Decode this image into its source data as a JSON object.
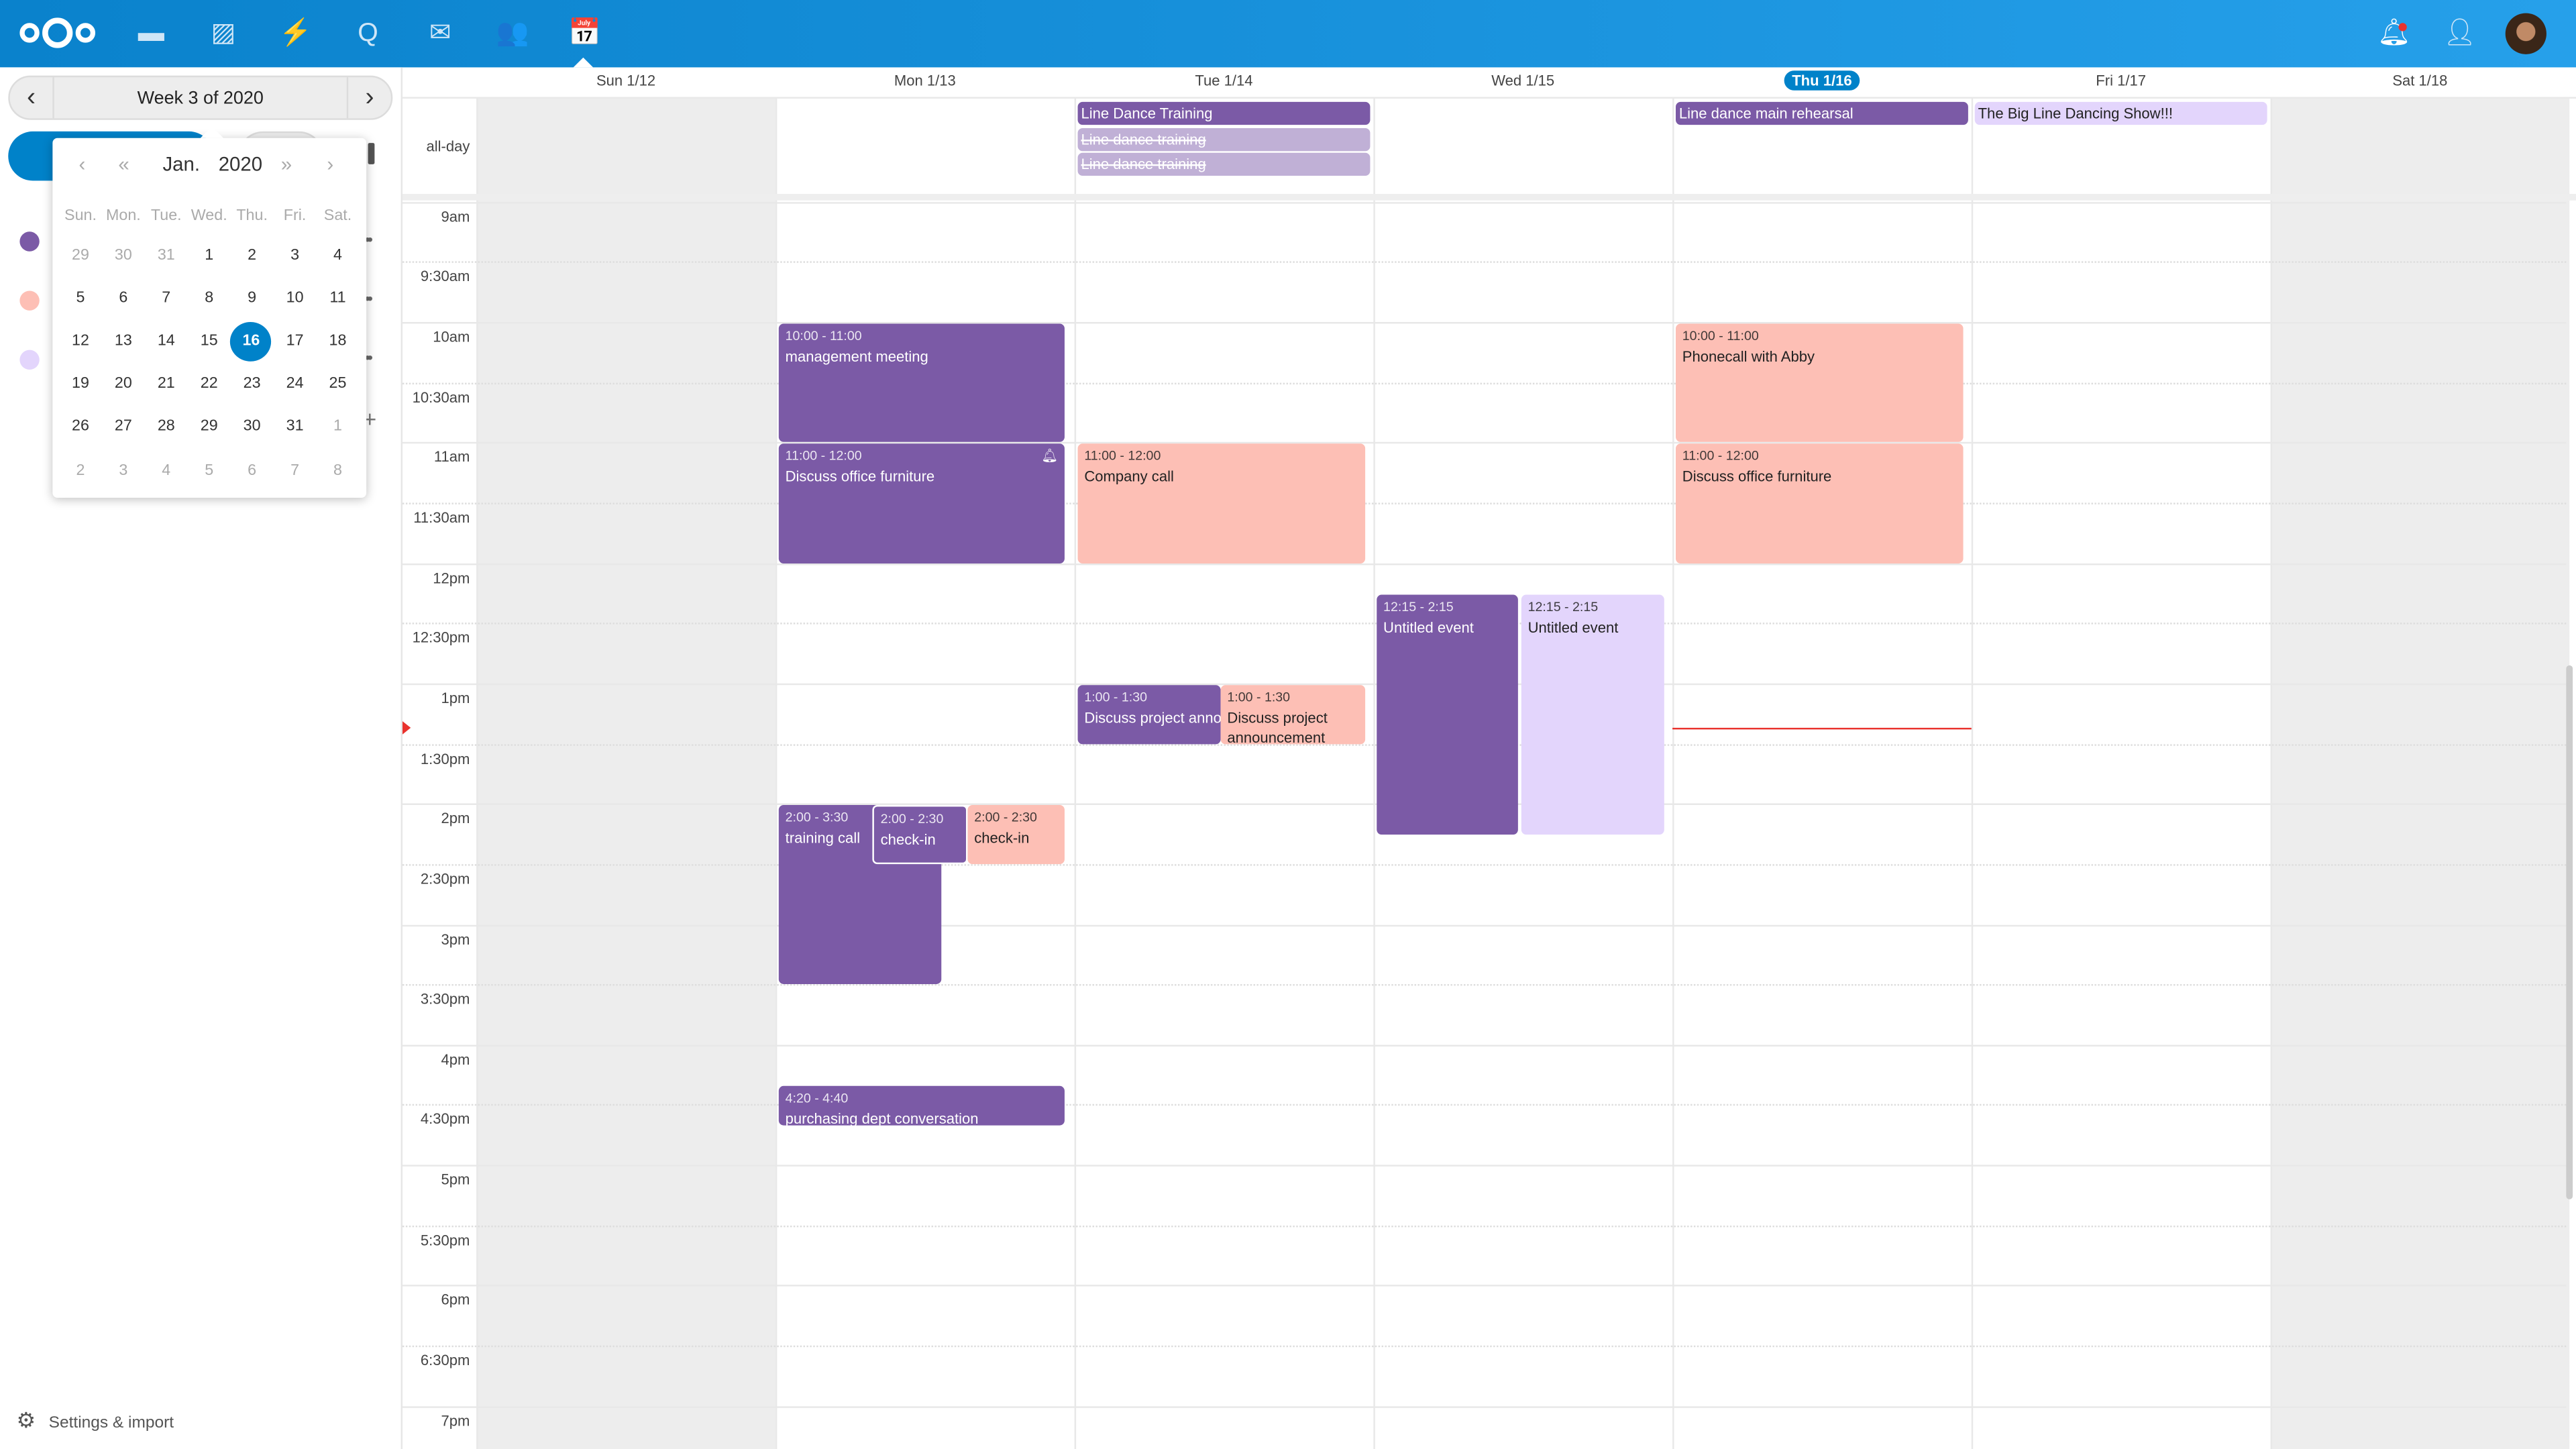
{
  "header": {
    "apps": [
      {
        "name": "files-icon",
        "glyph": "▬"
      },
      {
        "name": "photos-icon",
        "glyph": "▨"
      },
      {
        "name": "activity-icon",
        "glyph": "⚡"
      },
      {
        "name": "search-icon",
        "glyph": "Q"
      },
      {
        "name": "mail-icon",
        "glyph": "✉"
      },
      {
        "name": "contacts-icon",
        "glyph": "👥"
      },
      {
        "name": "calendar-icon",
        "glyph": "📅"
      }
    ],
    "brand_color": "#0082c9"
  },
  "sidebar": {
    "week_label": "Week 3 of 2020",
    "datepicker": {
      "month": "Jan.",
      "year": "2020",
      "weekdays": [
        "Sun.",
        "Mon.",
        "Tue.",
        "Wed.",
        "Thu.",
        "Fri.",
        "Sat."
      ],
      "weeks": [
        [
          "29",
          "30",
          "31",
          "1",
          "2",
          "3",
          "4"
        ],
        [
          "5",
          "6",
          "7",
          "8",
          "9",
          "10",
          "11"
        ],
        [
          "12",
          "13",
          "14",
          "15",
          "16",
          "17",
          "18"
        ],
        [
          "19",
          "20",
          "21",
          "22",
          "23",
          "24",
          "25"
        ],
        [
          "26",
          "27",
          "28",
          "29",
          "30",
          "31",
          "1"
        ],
        [
          "2",
          "3",
          "4",
          "5",
          "6",
          "7",
          "8"
        ]
      ],
      "selected": "16"
    },
    "calendar_colors": [
      "#7b5aa6",
      "#fdbfb5",
      "#e3d5fc"
    ],
    "settings_label": "Settings & import"
  },
  "grid": {
    "all_day_label": "all-day",
    "days": [
      "Sun 1/12",
      "Mon 1/13",
      "Tue 1/14",
      "Wed 1/15",
      "Thu 1/16",
      "Fri 1/17",
      "Sat 1/18"
    ],
    "today_index": 4,
    "time_labels": [
      "9am",
      "9:30am",
      "10am",
      "10:30am",
      "11am",
      "11:30am",
      "12pm",
      "12:30pm",
      "1pm",
      "1:30pm",
      "2pm",
      "2:30pm",
      "3pm",
      "3:30pm",
      "4pm",
      "4:30pm",
      "5pm",
      "5:30pm",
      "6pm",
      "6:30pm",
      "7pm"
    ],
    "now_time": "1:22pm",
    "all_day_events": [
      {
        "day": 2,
        "title": "Line Dance Training",
        "color": "#7b5aa6",
        "text": "#fff",
        "cancelled": false
      },
      {
        "day": 2,
        "title": "Line dance training",
        "color": "#c0b0d6",
        "text": "#fff",
        "cancelled": true
      },
      {
        "day": 2,
        "title": "Line dance training",
        "color": "#c0b0d6",
        "text": "#fff",
        "cancelled": true
      },
      {
        "day": 4,
        "title": "Line dance main rehearsal",
        "color": "#7b5aa6",
        "text": "#fff",
        "cancelled": false
      },
      {
        "day": 5,
        "title": "The Big Line Dancing Show!!!",
        "color": "#e3d5fc",
        "text": "#222",
        "cancelled": false
      }
    ],
    "events": [
      {
        "day": 1,
        "time": "10:00 - 11:00",
        "title": "management meeting",
        "start": 10,
        "end": 11,
        "color": "#7b5aa6",
        "text": "#fff"
      },
      {
        "day": 1,
        "time": "11:00 - 12:00",
        "title": "Discuss office furniture",
        "start": 11,
        "end": 12,
        "color": "#7b5aa6",
        "text": "#fff",
        "alarm": true
      },
      {
        "day": 2,
        "time": "11:00 - 12:00",
        "title": "Company call",
        "start": 11,
        "end": 12,
        "color": "#fdbfb5",
        "text": "#222"
      },
      {
        "day": 3,
        "time": "12:15 - 2:15",
        "title": "Untitled event",
        "start": 12.25,
        "end": 14.25,
        "color": "#7b5aa6",
        "text": "#fff"
      },
      {
        "day": 3,
        "time": "12:15 - 2:15",
        "title": "Untitled event",
        "start": 12.25,
        "end": 14.25,
        "color": "#e3d5fc",
        "text": "#222"
      },
      {
        "day": 2,
        "time": "1:00 - 1:30",
        "title": "Discuss project announcement",
        "start": 13,
        "end": 13.5,
        "color": "#7b5aa6",
        "text": "#fff"
      },
      {
        "day": 2,
        "time": "1:00 - 1:30",
        "title": "Discuss project announcement",
        "start": 13,
        "end": 13.5,
        "color": "#fdbfb5",
        "text": "#222",
        "wrap": true
      },
      {
        "day": 1,
        "time": "2:00 - 3:30",
        "title": "training call",
        "start": 14,
        "end": 15.5,
        "color": "#7b5aa6",
        "text": "#fff"
      },
      {
        "day": 1,
        "time": "2:00 - 2:30",
        "title": "check-in",
        "start": 14,
        "end": 14.5,
        "color": "#7b5aa6",
        "text": "#fff"
      },
      {
        "day": 1,
        "time": "2:00 - 2:30",
        "title": "check-in",
        "start": 14,
        "end": 14.5,
        "color": "#fdbfb5",
        "text": "#222"
      },
      {
        "day": 1,
        "time": "4:20 - 4:40",
        "title": "purchasing dept conversation",
        "start": 16.333,
        "end": 16.667,
        "color": "#7b5aa6",
        "text": "#fff"
      },
      {
        "day": 4,
        "time": "10:00 - 11:00",
        "title": "Phonecall with Abby",
        "start": 10,
        "end": 11,
        "color": "#fdbfb5",
        "text": "#222"
      },
      {
        "day": 4,
        "time": "11:00 - 12:00",
        "title": "Discuss office furniture",
        "start": 11,
        "end": 12,
        "color": "#fdbfb5",
        "text": "#222"
      }
    ]
  }
}
